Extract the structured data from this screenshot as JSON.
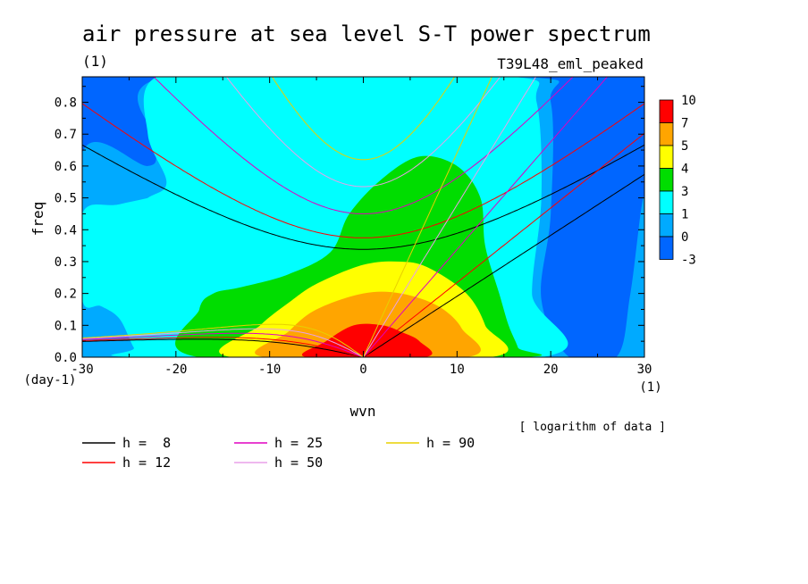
{
  "header": {
    "title": "air pressure at sea level S-T power spectrum",
    "units": "(1)",
    "experiment": "T39L48_eml_peaked"
  },
  "chart_data": {
    "type": "heatmap",
    "title": "air pressure at sea level S-T power spectrum",
    "xlabel": "wvn",
    "ylabel": "freq",
    "x_unit": "(1)",
    "y_unit": "(day-1)",
    "xlim": [
      -30,
      30
    ],
    "ylim": [
      0,
      0.88
    ],
    "x_ticks": [
      "-30",
      "-20",
      "-10",
      "0",
      "10",
      "20",
      "30"
    ],
    "x_tick_values": [
      -30,
      -20,
      -10,
      0,
      10,
      20,
      30
    ],
    "y_ticks": [
      "0.0",
      "0.1",
      "0.2",
      "0.3",
      "0.4",
      "0.5",
      "0.6",
      "0.7",
      "0.8"
    ],
    "y_tick_values": [
      0,
      0.1,
      0.2,
      0.3,
      0.4,
      0.5,
      0.6,
      0.7,
      0.8
    ],
    "note": "[ logarithm of data ]",
    "colorbar": {
      "levels": [
        "10",
        "7",
        "5",
        "4",
        "3",
        "1",
        "0",
        "-3"
      ],
      "colors": [
        "#ff0000",
        "#ffa500",
        "#ffff00",
        "#00dd00",
        "#00ffff",
        "#00aaff",
        "#0066ff"
      ]
    },
    "regions": [
      {
        "level": "0",
        "color": "#00aaff",
        "points": [
          [
            -30,
            0.64
          ],
          [
            -23,
            0.6
          ],
          [
            -22,
            0.67
          ],
          [
            -21,
            0.88
          ],
          [
            17,
            0.88
          ],
          [
            20,
            0.8
          ],
          [
            20,
            0.45
          ],
          [
            19,
            0.18
          ],
          [
            22,
            0.0
          ],
          [
            27,
            0.0
          ],
          [
            28.5,
            0.2
          ],
          [
            30,
            0.5
          ],
          [
            30,
            0.0
          ],
          [
            -30,
            0.0
          ]
        ]
      },
      {
        "level": "1",
        "color": "#00ffff",
        "points": [
          [
            -30,
            0.45
          ],
          [
            -26,
            0.48
          ],
          [
            -20,
            0.52
          ],
          [
            -13,
            0.58
          ],
          [
            -10,
            0.7
          ],
          [
            -9,
            0.85
          ],
          [
            -9,
            0.88
          ],
          [
            16,
            0.88
          ],
          [
            18.5,
            0.8
          ],
          [
            19,
            0.5
          ],
          [
            18,
            0.2
          ],
          [
            19,
            0.0
          ],
          [
            -23.5,
            0.0
          ],
          [
            -24.5,
            0.03
          ],
          [
            -26,
            0.12
          ],
          [
            -28,
            0.16
          ],
          [
            -30,
            0.18
          ]
        ]
      },
      {
        "level": "1",
        "color": "#00ffff",
        "points": [
          [
            -27,
            0.23
          ],
          [
            -21,
            0.27
          ],
          [
            -15,
            0.33
          ],
          [
            -10,
            0.38
          ],
          [
            -8,
            0.45
          ],
          [
            -9,
            0.88
          ],
          [
            -22,
            0.88
          ],
          [
            -23,
            0.7
          ],
          [
            -21,
            0.55
          ],
          [
            -23,
            0.5
          ],
          [
            -27,
            0.44
          ],
          [
            -26.5,
            0.3
          ]
        ]
      },
      {
        "level": "3",
        "color": "#00dd00",
        "points": [
          [
            -17.5,
            0.0
          ],
          [
            -17.5,
            0.15
          ],
          [
            -16,
            0.2
          ],
          [
            -13,
            0.22
          ],
          [
            -8,
            0.26
          ],
          [
            -3.5,
            0.33
          ],
          [
            -1.5,
            0.45
          ],
          [
            2,
            0.56
          ],
          [
            6,
            0.63
          ],
          [
            10,
            0.6
          ],
          [
            12.5,
            0.5
          ],
          [
            13,
            0.35
          ],
          [
            14.5,
            0.2
          ],
          [
            15.5,
            0.1
          ],
          [
            16.5,
            0.03
          ],
          [
            16.5,
            0.0
          ]
        ]
      },
      {
        "level": "4",
        "color": "#ffff00",
        "points": [
          [
            -14,
            0.0
          ],
          [
            -11,
            0.1
          ],
          [
            -8,
            0.17
          ],
          [
            -5,
            0.23
          ],
          [
            0,
            0.29
          ],
          [
            4,
            0.3
          ],
          [
            7,
            0.28
          ],
          [
            11,
            0.2
          ],
          [
            13,
            0.1
          ],
          [
            13.5,
            0.0
          ]
        ]
      },
      {
        "level": "5",
        "color": "#ffa500",
        "points": [
          [
            -10.5,
            0.0
          ],
          [
            -8,
            0.08
          ],
          [
            -5,
            0.15
          ],
          [
            0,
            0.2
          ],
          [
            4,
            0.2
          ],
          [
            8,
            0.16
          ],
          [
            10.5,
            0.09
          ],
          [
            11,
            0.0
          ]
        ]
      },
      {
        "level": "7",
        "color": "#ff0000",
        "points": [
          [
            -6,
            0.0
          ],
          [
            -4,
            0.05
          ],
          [
            -1,
            0.1
          ],
          [
            2,
            0.1
          ],
          [
            4,
            0.08
          ],
          [
            6,
            0.05
          ],
          [
            6.5,
            0.0
          ]
        ]
      }
    ],
    "series": [
      {
        "name": "h =  8",
        "h": 8,
        "color": "#000000"
      },
      {
        "name": "h = 12",
        "h": 12,
        "color": "#ff0000"
      },
      {
        "name": "h = 25",
        "h": 25,
        "color": "#e000c0"
      },
      {
        "name": "h = 50",
        "h": 50,
        "color": "#e8a0e8"
      },
      {
        "name": "h = 90",
        "h": 90,
        "color": "#e8d000"
      }
    ]
  }
}
